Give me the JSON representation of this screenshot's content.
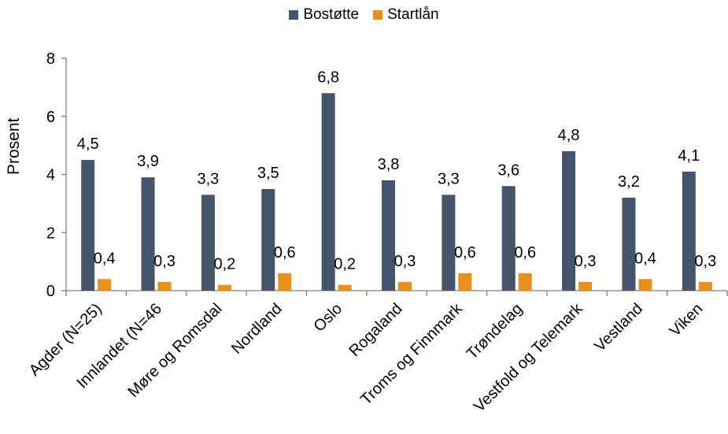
{
  "chart_data": {
    "type": "bar",
    "categories": [
      "Agder (N=25)",
      "Innlandet (N=46",
      "Møre og Romsdal",
      "Nordland",
      "Oslo",
      "Rogaland",
      "Troms og Finnmark",
      "Trøndelag",
      "Vestfold og Telemark",
      "Vestland",
      "Viken"
    ],
    "series": [
      {
        "name": "Bostøtte",
        "color": "#44546a",
        "values": [
          4.5,
          3.9,
          3.3,
          3.5,
          6.8,
          3.8,
          3.3,
          3.6,
          4.8,
          3.2,
          4.1
        ],
        "labels": [
          "4,5",
          "3,9",
          "3,3",
          "3,5",
          "6,8",
          "3,8",
          "3,3",
          "3,6",
          "4,8",
          "3,2",
          "4,1"
        ]
      },
      {
        "name": "Startlån",
        "color": "#e8901c",
        "values": [
          0.4,
          0.3,
          0.2,
          0.6,
          0.2,
          0.3,
          0.6,
          0.6,
          0.3,
          0.4,
          0.3
        ],
        "labels": [
          "0,4",
          "0,3",
          "0,2",
          "0,6",
          "0,2",
          "0,3",
          "0,6",
          "0,6",
          "0,3",
          "0,4",
          "0,3"
        ]
      }
    ],
    "ylabel": "Prosent",
    "ylim": [
      0,
      8
    ],
    "yticks": [
      "0",
      "2",
      "4",
      "6",
      "8"
    ],
    "grid": false,
    "legend": "top-center"
  }
}
